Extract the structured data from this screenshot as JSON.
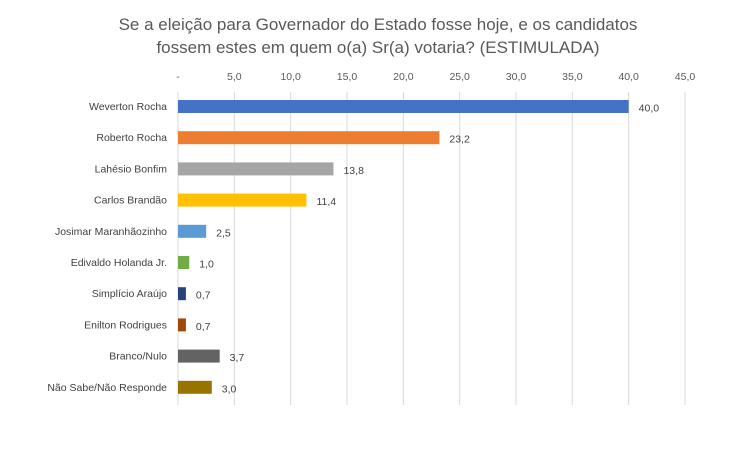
{
  "chart_data": {
    "type": "bar",
    "orientation": "horizontal",
    "title_lines": [
      "Se a eleição para Governador do Estado fosse hoje, e os candidatos",
      "fossem estes em quem o(a) Sr(a) votaria? (ESTIMULADA)"
    ],
    "x_ticks": [
      "-",
      "5,0",
      "10,0",
      "15,0",
      "20,0",
      "25,0",
      "30,0",
      "35,0",
      "40,0",
      "45,0"
    ],
    "xlim": [
      0,
      45
    ],
    "grid": true,
    "legend": "none",
    "categories": [
      "Weverton Rocha",
      "Roberto Rocha",
      "Lahésio Bonfim",
      "Carlos Brandão",
      "Josimar Maranhãozinho",
      "Edivaldo Holanda Jr.",
      "Simplício Araújo",
      "Enilton Rodrigues",
      "Branco/Nulo",
      "Não Sabe/Não Responde"
    ],
    "values": [
      40.0,
      23.2,
      13.8,
      11.4,
      2.5,
      1.0,
      0.7,
      0.7,
      3.7,
      3.0
    ],
    "value_labels": [
      "40,0",
      "23,2",
      "13,8",
      "11,4",
      "2,5",
      "1,0",
      "0,7",
      "0,7",
      "3,7",
      "3,0"
    ],
    "colors": [
      "#4472c4",
      "#ed7d31",
      "#a5a5a5",
      "#ffc000",
      "#5b9bd5",
      "#70ad47",
      "#264478",
      "#9e480e",
      "#636363",
      "#997300"
    ]
  }
}
